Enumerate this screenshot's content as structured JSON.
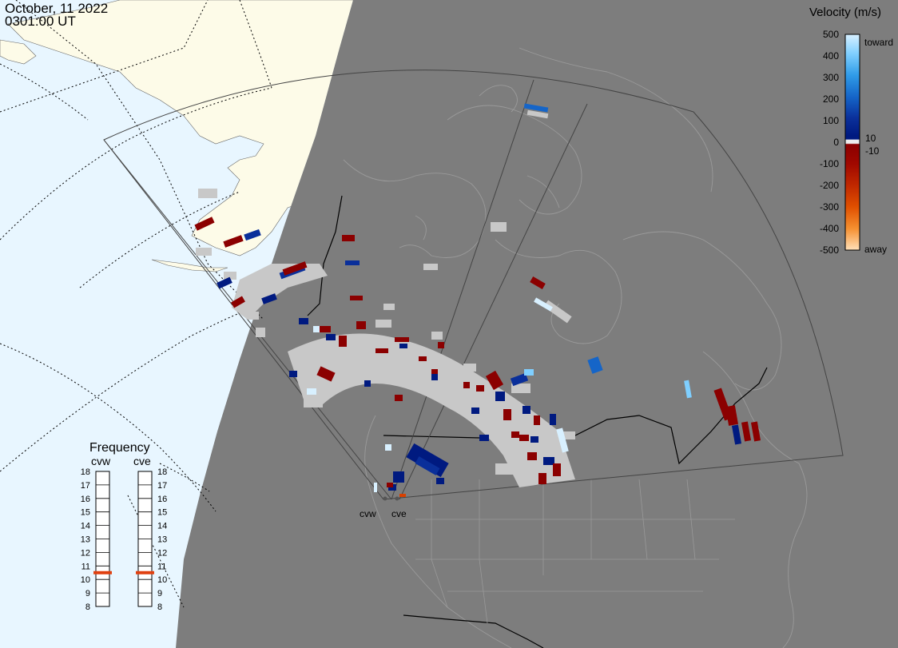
{
  "header": {
    "date": "October, 11 2022",
    "time": "0301:00 UT"
  },
  "legend": {
    "title": "Velocity (m/s)",
    "ticks": [
      "500",
      "400",
      "300",
      "200",
      "100",
      "0",
      "-100",
      "-200",
      "-300",
      "-400",
      "-500"
    ],
    "label_toward": "toward",
    "label_away": "away",
    "label_pos": "10",
    "label_neg": "-10",
    "colors": [
      "#d8f0ff",
      "#7fcfff",
      "#2f9be8",
      "#1565c8",
      "#0a2f9a",
      "#001a80",
      "#eeeeee",
      "#8b0000",
      "#b01800",
      "#d84000",
      "#f07800",
      "#ffb060",
      "#ffe0b8"
    ]
  },
  "frequency_panel": {
    "title": "Frequency",
    "radars": [
      "cvw",
      "cve"
    ],
    "freq_values": [
      "18",
      "17",
      "16",
      "15",
      "14",
      "13",
      "12",
      "11",
      "10",
      "9",
      "8"
    ],
    "cvw_frequency": 10.5,
    "cve_frequency": 10.5,
    "marker_color": "#e04010"
  },
  "sites": {
    "cvw": "cvw",
    "cve": "cve"
  },
  "map_colors": {
    "ocean_lit": "#e8f6ff",
    "land_lit": "#fdfbe8",
    "night": "#7d7d7d",
    "scatter_ground": "#c8c8c8"
  }
}
